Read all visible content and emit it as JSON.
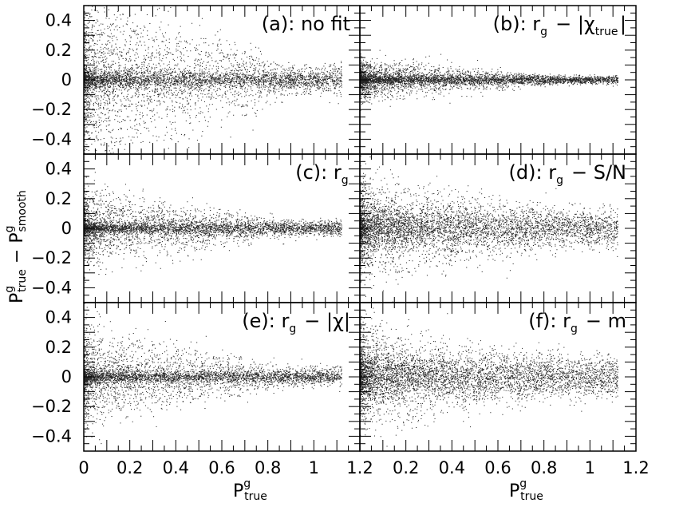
{
  "chart_data": {
    "type": "scatter",
    "layout": "3 rows x 2 columns, shared axes",
    "xlabel": {
      "main": "P",
      "sup": "g",
      "sub": "true"
    },
    "ylabel": {
      "a": "P",
      "a_sup": "g",
      "a_sub": "true",
      "op": " − ",
      "b": "P",
      "b_sup": "g",
      "b_sub": "smooth"
    },
    "xlim": [
      0,
      1.2
    ],
    "ylim": [
      -0.5,
      0.5
    ],
    "x_ticks": [
      "0",
      "0.2",
      "0.4",
      "0.6",
      "0.8",
      "1",
      "1.2"
    ],
    "x_ticks_right": [
      "0.2",
      "0.4",
      "0.6",
      "0.8",
      "1",
      "1.2"
    ],
    "y_ticks": [
      "0.4",
      "0.2",
      "0",
      "−0.2",
      "−0.4"
    ],
    "y_tick_values": [
      0.4,
      0.2,
      0,
      -0.2,
      -0.4
    ],
    "x_tick_values": [
      0,
      0.2,
      0.4,
      0.6,
      0.8,
      1,
      1.2
    ],
    "panels": [
      {
        "label": "(a): no fit",
        "spread_low_x": 0.5,
        "spread_high_x": 0.1,
        "line_tightness": 0.03,
        "density": 1.0
      },
      {
        "label": "(b): r_g − |χ_true|",
        "spread_low_x": 0.12,
        "spread_high_x": 0.02,
        "line_tightness": 0.015,
        "density": 0.9
      },
      {
        "label": "(c): r_g",
        "spread_low_x": 0.22,
        "spread_high_x": 0.05,
        "line_tightness": 0.02,
        "density": 0.9
      },
      {
        "label": "(d): r_g − S/N",
        "spread_low_x": 0.3,
        "spread_high_x": 0.12,
        "line_tightness": 0.06,
        "density": 1.0
      },
      {
        "label": "(e): r_g − |χ|",
        "spread_low_x": 0.28,
        "spread_high_x": 0.06,
        "line_tightness": 0.02,
        "density": 0.9
      },
      {
        "label": "(f): r_g − m",
        "spread_low_x": 0.3,
        "spread_high_x": 0.12,
        "line_tightness": 0.07,
        "density": 1.0
      }
    ]
  }
}
